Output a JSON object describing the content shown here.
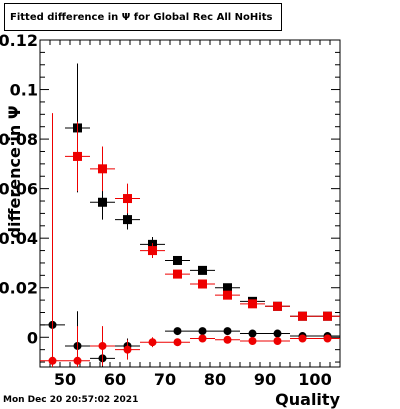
{
  "header": {
    "title": "Fitted difference in  Ψ  for Global Rec All NoHits"
  },
  "footer": {
    "timestamp": "Mon Dec 20 20:57:02 2021"
  },
  "chart_data": {
    "type": "scatter",
    "title": "Fitted difference in  Ψ  for Global Rec All NoHits",
    "xlabel": "Quality",
    "ylabel": "difference in  Ψ",
    "xlim": [
      45,
      105
    ],
    "ylim": [
      -0.012,
      0.12
    ],
    "xticks": [
      50,
      60,
      70,
      80,
      90,
      100
    ],
    "yticks": [
      0,
      0.02,
      0.04,
      0.06,
      0.08,
      0.1,
      0.12
    ],
    "ytick_labels": [
      "0",
      "0.02",
      "0.04",
      "0.06",
      "0.08",
      "0.1",
      "0.12"
    ],
    "grid": false,
    "x_error": 2.5,
    "series": [
      {
        "marker": "square",
        "color": "#000000",
        "x": [
          52.5,
          57.5,
          62.5,
          67.5,
          72.5,
          77.5,
          82.5,
          87.5,
          92.5,
          97.5,
          102.5
        ],
        "y": [
          0.0845,
          0.0545,
          0.0475,
          0.0375,
          0.031,
          0.027,
          0.02,
          0.0145,
          0.0125,
          0.0085,
          0.0085
        ],
        "yerr": [
          0.026,
          0.007,
          0.004,
          0.003,
          0.001,
          0.0008,
          0.0007,
          0.0006,
          0.0006,
          0.0005,
          0.0005
        ]
      },
      {
        "marker": "square",
        "color": "#ee0000",
        "x": [
          52.5,
          57.5,
          62.5,
          67.5,
          72.5,
          77.5,
          82.5,
          87.5,
          92.5,
          97.5,
          102.5
        ],
        "y": [
          0.073,
          0.068,
          0.056,
          0.035,
          0.0255,
          0.0215,
          0.017,
          0.0135,
          0.0125,
          0.0085,
          0.0085
        ],
        "yerr": [
          0.014,
          0.009,
          0.006,
          0.003,
          0.001,
          0.0008,
          0.0007,
          0.0006,
          0.0006,
          0.0005,
          0.0005
        ]
      },
      {
        "marker": "circle",
        "color": "#000000",
        "x": [
          47.5,
          52.5,
          57.5,
          62.5,
          72.5,
          77.5,
          82.5,
          87.5,
          92.5,
          97.5,
          102.5
        ],
        "y": [
          0.005,
          -0.0035,
          -0.0085,
          -0.0035,
          0.0025,
          0.0025,
          0.0025,
          0.0015,
          0.0015,
          0.0005,
          0.0005
        ],
        "yerr": [
          0.014,
          0.014,
          0.008,
          0.003,
          0.001,
          0.0008,
          0.0007,
          0.0006,
          0.0006,
          0.0005,
          0.0005
        ]
      },
      {
        "marker": "circle",
        "color": "#ee0000",
        "x": [
          47.5,
          52.5,
          57.5,
          62.5,
          67.5,
          72.5,
          77.5,
          82.5,
          87.5,
          92.5,
          97.5,
          102.5
        ],
        "y": [
          -0.0095,
          -0.0095,
          -0.0035,
          -0.005,
          -0.002,
          -0.002,
          -0.0005,
          -0.001,
          -0.0015,
          -0.0015,
          -0.0005,
          -0.0005
        ],
        "yerr": [
          0.1,
          0.014,
          0.008,
          0.004,
          0.002,
          0.001,
          0.0008,
          0.0007,
          0.0006,
          0.0006,
          0.0005,
          0.0005
        ]
      }
    ]
  }
}
